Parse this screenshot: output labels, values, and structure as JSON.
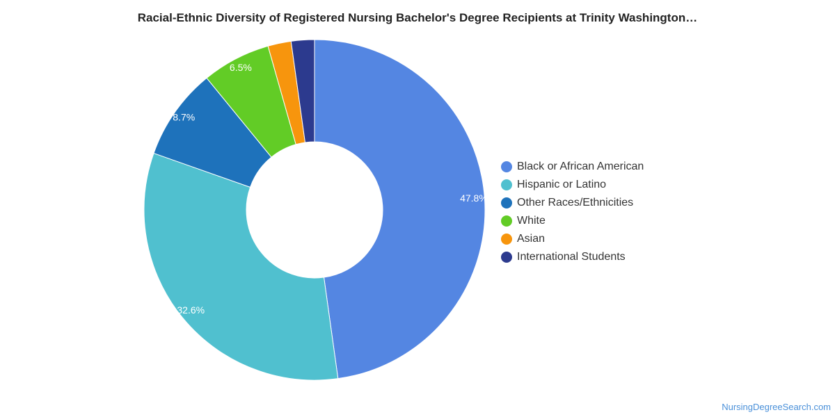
{
  "chart_data": {
    "type": "pie",
    "title": "Racial-Ethnic Diversity of Registered Nursing Bachelor's Degree Recipients at Trinity Washington…",
    "donut": true,
    "legend_position": "right",
    "slices": [
      {
        "label": "Black or African American",
        "value": 47.8,
        "value_label": "47.8%",
        "color": "#5486e2"
      },
      {
        "label": "Hispanic or Latino",
        "value": 32.6,
        "value_label": "32.6%",
        "color": "#50c0cf"
      },
      {
        "label": "Other Races/Ethnicities",
        "value": 8.7,
        "value_label": "8.7%",
        "color": "#1e72bb"
      },
      {
        "label": "White",
        "value": 6.5,
        "value_label": "6.5%",
        "color": "#62cc26"
      },
      {
        "label": "Asian",
        "value": 2.2,
        "value_label": "",
        "color": "#f7950d"
      },
      {
        "label": "International Students",
        "value": 2.2,
        "value_label": "",
        "color": "#2c3a8e"
      }
    ]
  },
  "watermark": "NursingDegreeSearch.com"
}
